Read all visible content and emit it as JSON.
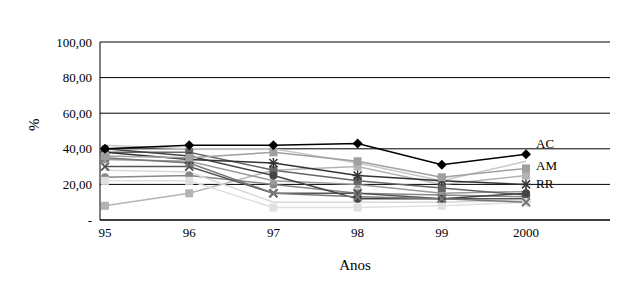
{
  "chart_data": {
    "type": "line",
    "x_label": "Anos",
    "y_label": "%",
    "categories": [
      "95",
      "96",
      "97",
      "98",
      "99",
      "2000"
    ],
    "ylim": [
      0,
      100
    ],
    "yticks": [
      {
        "value": 0,
        "label": "-"
      },
      {
        "value": 20,
        "label": "20,00"
      },
      {
        "value": 40,
        "label": "40,00"
      },
      {
        "value": 60,
        "label": "60,00"
      },
      {
        "value": 80,
        "label": "80,00"
      },
      {
        "value": 100,
        "label": "100,00"
      }
    ],
    "grid": true,
    "series": [
      {
        "color": "#c8c8c8",
        "marker": "none",
        "values": [
          42,
          40,
          40,
          32,
          22,
          33
        ]
      },
      {
        "color": "#b4b4b4",
        "marker": "square",
        "values": [
          8,
          15,
          28,
          30,
          20,
          25
        ]
      },
      {
        "color": "#888888",
        "marker": "circle",
        "values": [
          24,
          25,
          20,
          15,
          14,
          13
        ]
      },
      {
        "color": "#555555",
        "marker": "cross",
        "values": [
          30,
          30,
          15,
          15,
          12,
          12
        ]
      },
      {
        "color": "#999999",
        "marker": "triangle",
        "values": [
          34,
          33,
          22,
          20,
          15,
          16
        ]
      },
      {
        "color": "#666666",
        "marker": "square",
        "values": [
          38,
          38,
          28,
          22,
          18,
          14
        ]
      },
      {
        "color": "#d8d8d8",
        "marker": "none",
        "values": [
          28,
          27,
          10,
          10,
          10,
          11
        ]
      },
      {
        "color": "#e0e0e0",
        "marker": "square",
        "values": [
          22,
          22,
          7,
          7,
          8,
          10
        ]
      },
      {
        "color": "#444444",
        "marker": "circle",
        "values": [
          40,
          36,
          25,
          12,
          12,
          15
        ]
      },
      {
        "color": "#777777",
        "marker": "cross",
        "values": [
          35,
          32,
          15,
          13,
          12,
          10
        ]
      },
      {
        "name": "RR",
        "color": "#333333",
        "marker": "star",
        "values": [
          38,
          34,
          32,
          25,
          22,
          20
        ]
      },
      {
        "name": "AM",
        "color": "#a0a0a0",
        "marker": "square",
        "values": [
          36,
          35,
          38,
          33,
          24,
          29
        ]
      },
      {
        "name": "AC",
        "color": "#000000",
        "marker": "diamond",
        "values": [
          40,
          42,
          42,
          43,
          31,
          37
        ]
      }
    ]
  }
}
